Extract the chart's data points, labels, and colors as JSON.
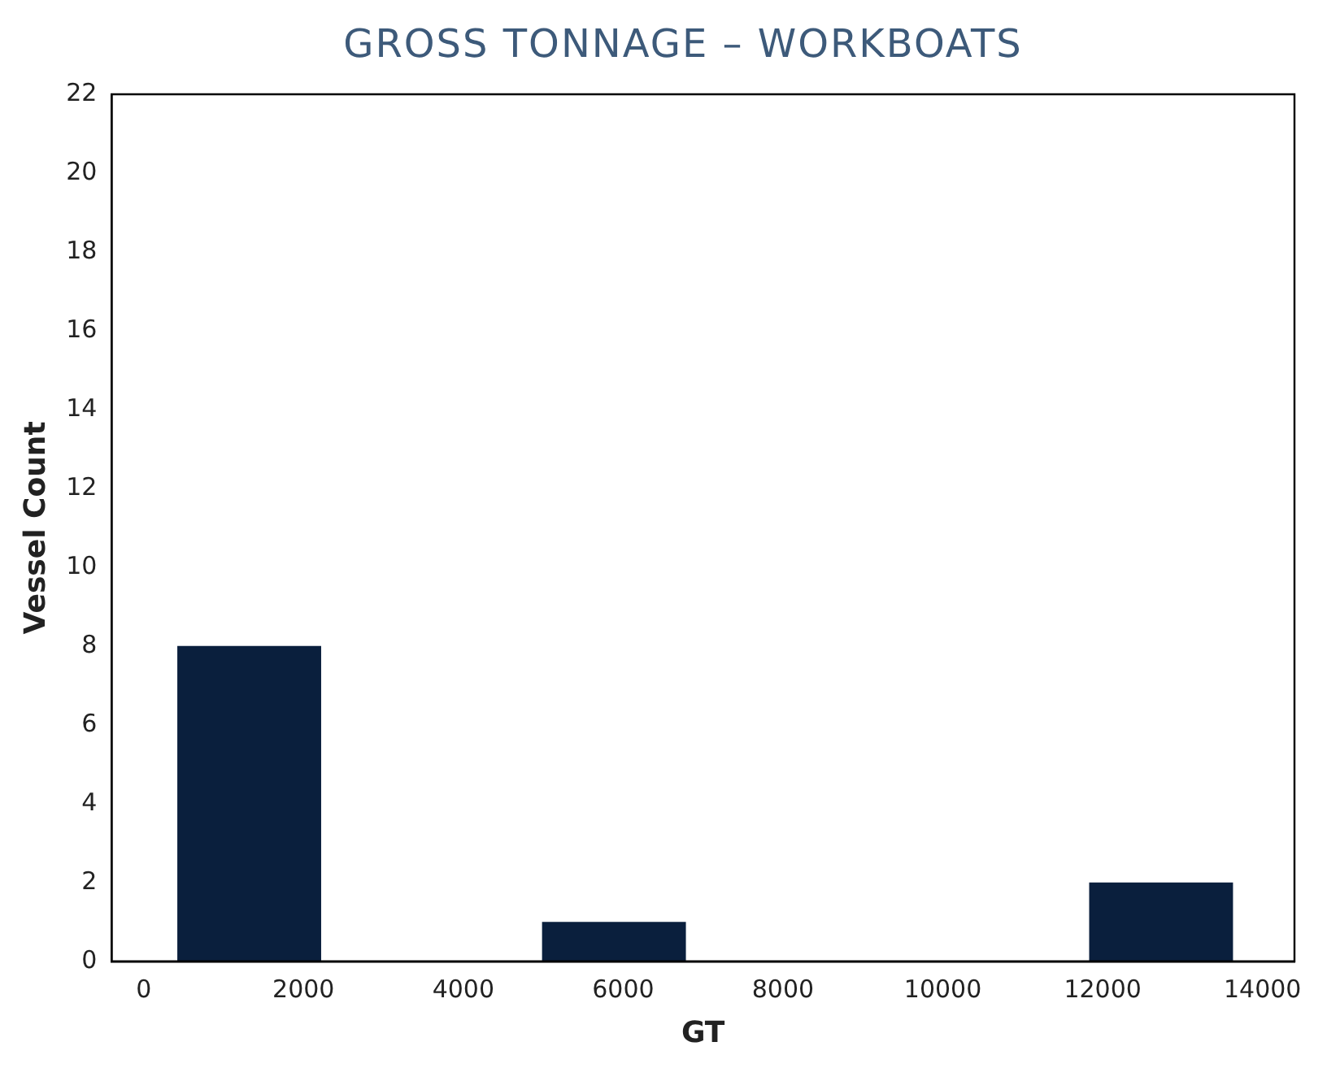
{
  "chart_data": {
    "type": "histogram",
    "title": "GROSS TONNAGE – WORKBOATS",
    "xlabel": "GT",
    "ylabel": "Vessel Count",
    "bins": [
      180,
      2462,
      4744,
      7026,
      9308,
      11590,
      13872
    ],
    "values": [
      8,
      0,
      1,
      0,
      0,
      2
    ],
    "color": "#0a1f3d",
    "xlim": [
      -400,
      14400
    ],
    "xticks": [
      0,
      2000,
      4000,
      6000,
      8000,
      10000,
      12000,
      14000
    ],
    "ylim": [
      0,
      22
    ],
    "yticks": [
      0,
      2,
      4,
      6,
      8,
      10,
      12,
      14,
      16,
      18,
      20,
      22
    ],
    "grid": false,
    "legend": false
  }
}
